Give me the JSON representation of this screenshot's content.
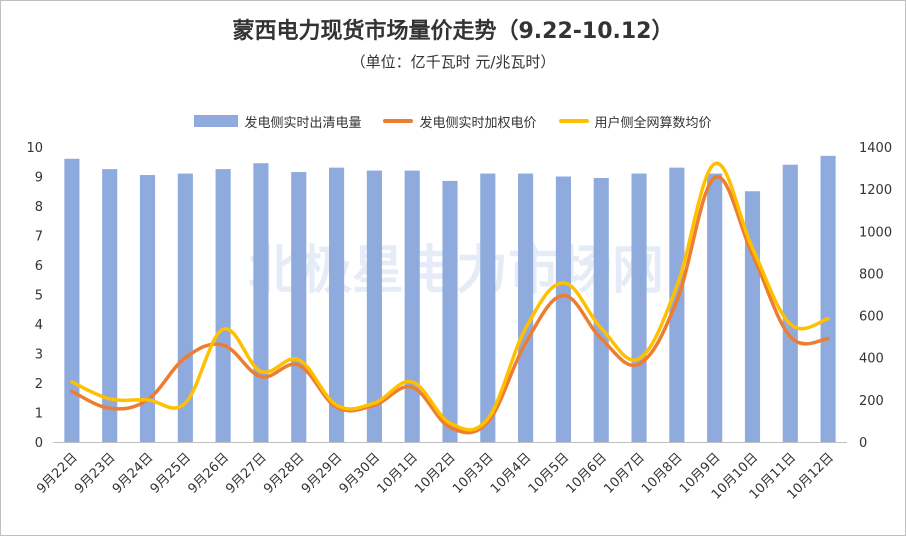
{
  "chart_data": {
    "type": "bar",
    "title": "蒙西电力现货市场量价走势（9.22-10.12）",
    "subtitle": "（单位：亿千瓦时 元/兆瓦时）",
    "watermark": "北极星电力市场网",
    "categories": [
      "9月22日",
      "9月23日",
      "9月24日",
      "9月25日",
      "9月26日",
      "9月27日",
      "9月28日",
      "9月29日",
      "9月30日",
      "10月1日",
      "10月2日",
      "10月3日",
      "10月4日",
      "10月5日",
      "10月6日",
      "10月7日",
      "10月8日",
      "10月9日",
      "10月10日",
      "10月11日",
      "10月12日"
    ],
    "y_left": {
      "lim": [
        0,
        10
      ],
      "ticks": [
        "0",
        "1",
        "2",
        "3",
        "4",
        "5",
        "6",
        "7",
        "8",
        "9",
        "10"
      ]
    },
    "y_right": {
      "lim": [
        0,
        1400
      ],
      "ticks": [
        "0",
        "200",
        "400",
        "600",
        "800",
        "1000",
        "1200",
        "1400"
      ]
    },
    "grid": false,
    "legend_position": "top",
    "series": [
      {
        "name": "发电侧实时出清电量",
        "type": "bar",
        "axis": "left",
        "color": "#8faadc",
        "values": [
          9.6,
          9.25,
          9.05,
          9.1,
          9.25,
          9.45,
          9.15,
          9.3,
          9.2,
          9.2,
          8.85,
          9.1,
          9.1,
          9.0,
          8.95,
          9.1,
          9.3,
          9.1,
          8.5,
          9.4,
          9.7
        ]
      },
      {
        "name": "发电侧实时加权电价",
        "type": "line",
        "axis": "right",
        "color": "#ed7d31",
        "values": [
          240,
          160,
          200,
          400,
          460,
          310,
          365,
          165,
          175,
          260,
          70,
          95,
          470,
          695,
          490,
          370,
          670,
          1255,
          890,
          500,
          490
        ]
      },
      {
        "name": "用户侧全网算数均价",
        "type": "line",
        "axis": "right",
        "color": "#ffc000",
        "values": [
          285,
          205,
          200,
          185,
          535,
          335,
          390,
          175,
          185,
          285,
          90,
          110,
          540,
          755,
          540,
          395,
          740,
          1320,
          920,
          560,
          585
        ]
      }
    ]
  }
}
